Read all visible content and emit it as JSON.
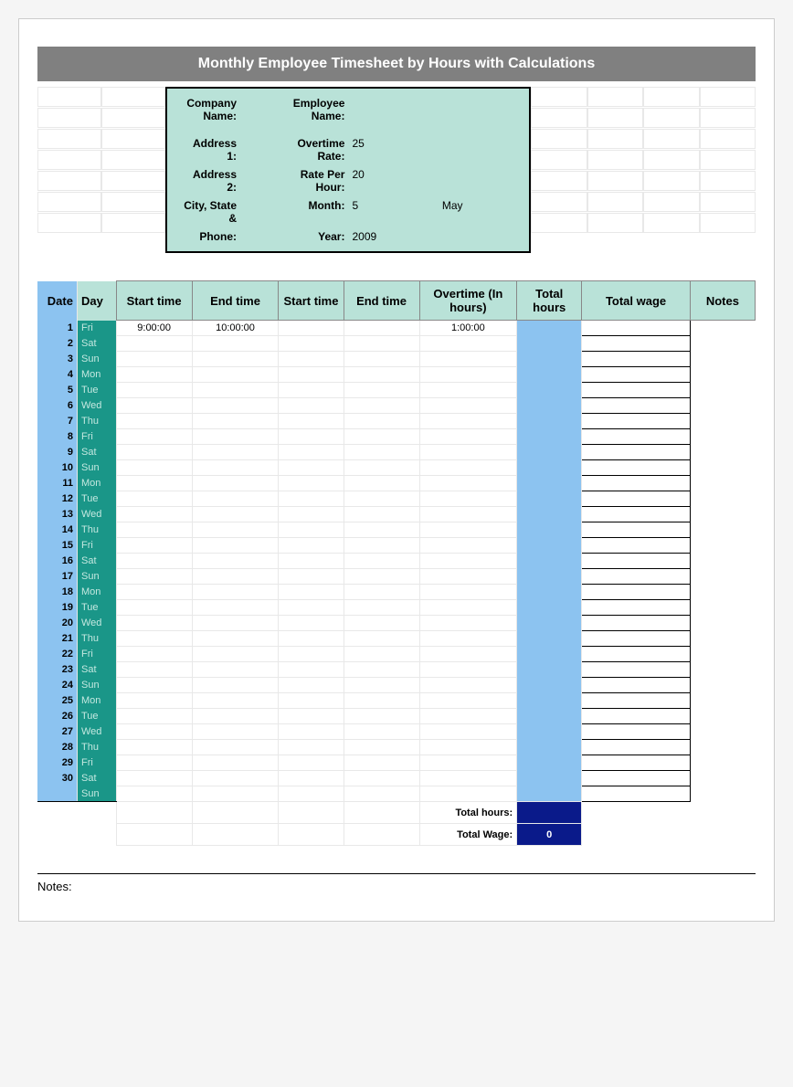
{
  "title": "Monthly Employee Timesheet by Hours with Calculations",
  "info": {
    "company_label": "Company Name:",
    "employee_label": "Employee Name:",
    "addr1_label": "Address 1:",
    "addr2_label": "Address 2:",
    "city_label": "City, State &",
    "phone_label": "Phone:",
    "ot_label": "Overtime Rate:",
    "ot_value": "25",
    "rate_label": "Rate Per Hour:",
    "rate_value": "20",
    "month_label": "Month:",
    "month_value": "5",
    "month_name": "May",
    "year_label": "Year:",
    "year_value": "2009"
  },
  "columns": [
    "Date",
    "Day",
    "Start time",
    "End time",
    "Start time",
    "End time",
    "Overtime (In hours)",
    "Total hours",
    "Total wage",
    "Notes"
  ],
  "rows": [
    {
      "date": "1",
      "day": "Fri",
      "start1": "9:00:00",
      "end1": "10:00:00",
      "start2": "",
      "end2": "",
      "ot": "1:00:00",
      "total": "",
      "wage": "",
      "notes": ""
    },
    {
      "date": "2",
      "day": "Sat",
      "start1": "",
      "end1": "",
      "start2": "",
      "end2": "",
      "ot": "",
      "total": "",
      "wage": "",
      "notes": ""
    },
    {
      "date": "3",
      "day": "Sun",
      "start1": "",
      "end1": "",
      "start2": "",
      "end2": "",
      "ot": "",
      "total": "",
      "wage": "",
      "notes": ""
    },
    {
      "date": "4",
      "day": "Mon",
      "start1": "",
      "end1": "",
      "start2": "",
      "end2": "",
      "ot": "",
      "total": "",
      "wage": "",
      "notes": ""
    },
    {
      "date": "5",
      "day": "Tue",
      "start1": "",
      "end1": "",
      "start2": "",
      "end2": "",
      "ot": "",
      "total": "",
      "wage": "",
      "notes": ""
    },
    {
      "date": "6",
      "day": "Wed",
      "start1": "",
      "end1": "",
      "start2": "",
      "end2": "",
      "ot": "",
      "total": "",
      "wage": "",
      "notes": ""
    },
    {
      "date": "7",
      "day": "Thu",
      "start1": "",
      "end1": "",
      "start2": "",
      "end2": "",
      "ot": "",
      "total": "",
      "wage": "",
      "notes": ""
    },
    {
      "date": "8",
      "day": "Fri",
      "start1": "",
      "end1": "",
      "start2": "",
      "end2": "",
      "ot": "",
      "total": "",
      "wage": "",
      "notes": ""
    },
    {
      "date": "9",
      "day": "Sat",
      "start1": "",
      "end1": "",
      "start2": "",
      "end2": "",
      "ot": "",
      "total": "",
      "wage": "",
      "notes": ""
    },
    {
      "date": "10",
      "day": "Sun",
      "start1": "",
      "end1": "",
      "start2": "",
      "end2": "",
      "ot": "",
      "total": "",
      "wage": "",
      "notes": ""
    },
    {
      "date": "11",
      "day": "Mon",
      "start1": "",
      "end1": "",
      "start2": "",
      "end2": "",
      "ot": "",
      "total": "",
      "wage": "",
      "notes": ""
    },
    {
      "date": "12",
      "day": "Tue",
      "start1": "",
      "end1": "",
      "start2": "",
      "end2": "",
      "ot": "",
      "total": "",
      "wage": "",
      "notes": ""
    },
    {
      "date": "13",
      "day": "Wed",
      "start1": "",
      "end1": "",
      "start2": "",
      "end2": "",
      "ot": "",
      "total": "",
      "wage": "",
      "notes": ""
    },
    {
      "date": "14",
      "day": "Thu",
      "start1": "",
      "end1": "",
      "start2": "",
      "end2": "",
      "ot": "",
      "total": "",
      "wage": "",
      "notes": ""
    },
    {
      "date": "15",
      "day": "Fri",
      "start1": "",
      "end1": "",
      "start2": "",
      "end2": "",
      "ot": "",
      "total": "",
      "wage": "",
      "notes": ""
    },
    {
      "date": "16",
      "day": "Sat",
      "start1": "",
      "end1": "",
      "start2": "",
      "end2": "",
      "ot": "",
      "total": "",
      "wage": "",
      "notes": ""
    },
    {
      "date": "17",
      "day": "Sun",
      "start1": "",
      "end1": "",
      "start2": "",
      "end2": "",
      "ot": "",
      "total": "",
      "wage": "",
      "notes": ""
    },
    {
      "date": "18",
      "day": "Mon",
      "start1": "",
      "end1": "",
      "start2": "",
      "end2": "",
      "ot": "",
      "total": "",
      "wage": "",
      "notes": ""
    },
    {
      "date": "19",
      "day": "Tue",
      "start1": "",
      "end1": "",
      "start2": "",
      "end2": "",
      "ot": "",
      "total": "",
      "wage": "",
      "notes": ""
    },
    {
      "date": "20",
      "day": "Wed",
      "start1": "",
      "end1": "",
      "start2": "",
      "end2": "",
      "ot": "",
      "total": "",
      "wage": "",
      "notes": ""
    },
    {
      "date": "21",
      "day": "Thu",
      "start1": "",
      "end1": "",
      "start2": "",
      "end2": "",
      "ot": "",
      "total": "",
      "wage": "",
      "notes": ""
    },
    {
      "date": "22",
      "day": "Fri",
      "start1": "",
      "end1": "",
      "start2": "",
      "end2": "",
      "ot": "",
      "total": "",
      "wage": "",
      "notes": ""
    },
    {
      "date": "23",
      "day": "Sat",
      "start1": "",
      "end1": "",
      "start2": "",
      "end2": "",
      "ot": "",
      "total": "",
      "wage": "",
      "notes": ""
    },
    {
      "date": "24",
      "day": "Sun",
      "start1": "",
      "end1": "",
      "start2": "",
      "end2": "",
      "ot": "",
      "total": "",
      "wage": "",
      "notes": ""
    },
    {
      "date": "25",
      "day": "Mon",
      "start1": "",
      "end1": "",
      "start2": "",
      "end2": "",
      "ot": "",
      "total": "",
      "wage": "",
      "notes": ""
    },
    {
      "date": "26",
      "day": "Tue",
      "start1": "",
      "end1": "",
      "start2": "",
      "end2": "",
      "ot": "",
      "total": "",
      "wage": "",
      "notes": ""
    },
    {
      "date": "27",
      "day": "Wed",
      "start1": "",
      "end1": "",
      "start2": "",
      "end2": "",
      "ot": "",
      "total": "",
      "wage": "",
      "notes": ""
    },
    {
      "date": "28",
      "day": "Thu",
      "start1": "",
      "end1": "",
      "start2": "",
      "end2": "",
      "ot": "",
      "total": "",
      "wage": "",
      "notes": ""
    },
    {
      "date": "29",
      "day": "Fri",
      "start1": "",
      "end1": "",
      "start2": "",
      "end2": "",
      "ot": "",
      "total": "",
      "wage": "",
      "notes": ""
    },
    {
      "date": "30",
      "day": "Sat",
      "start1": "",
      "end1": "",
      "start2": "",
      "end2": "",
      "ot": "",
      "total": "",
      "wage": "",
      "notes": ""
    },
    {
      "date": "",
      "day": "Sun",
      "start1": "",
      "end1": "",
      "start2": "",
      "end2": "",
      "ot": "",
      "total": "",
      "wage": "",
      "notes": ""
    }
  ],
  "summary": {
    "total_hours_label": "Total hours:",
    "total_hours_value": "",
    "total_wage_label": "Total Wage:",
    "total_wage_value": "0"
  },
  "notes_label": "Notes:",
  "colors": {
    "title_bg": "#808080",
    "info_bg": "#b9e2d8",
    "header_bg": "#b9e2d8",
    "date_bg": "#8cc3f0",
    "day_bg": "#1a9688",
    "day_fg": "#c4e8e0",
    "total_bg": "#8cc3f0",
    "summary_dark_bg": "#0a1a8a"
  }
}
